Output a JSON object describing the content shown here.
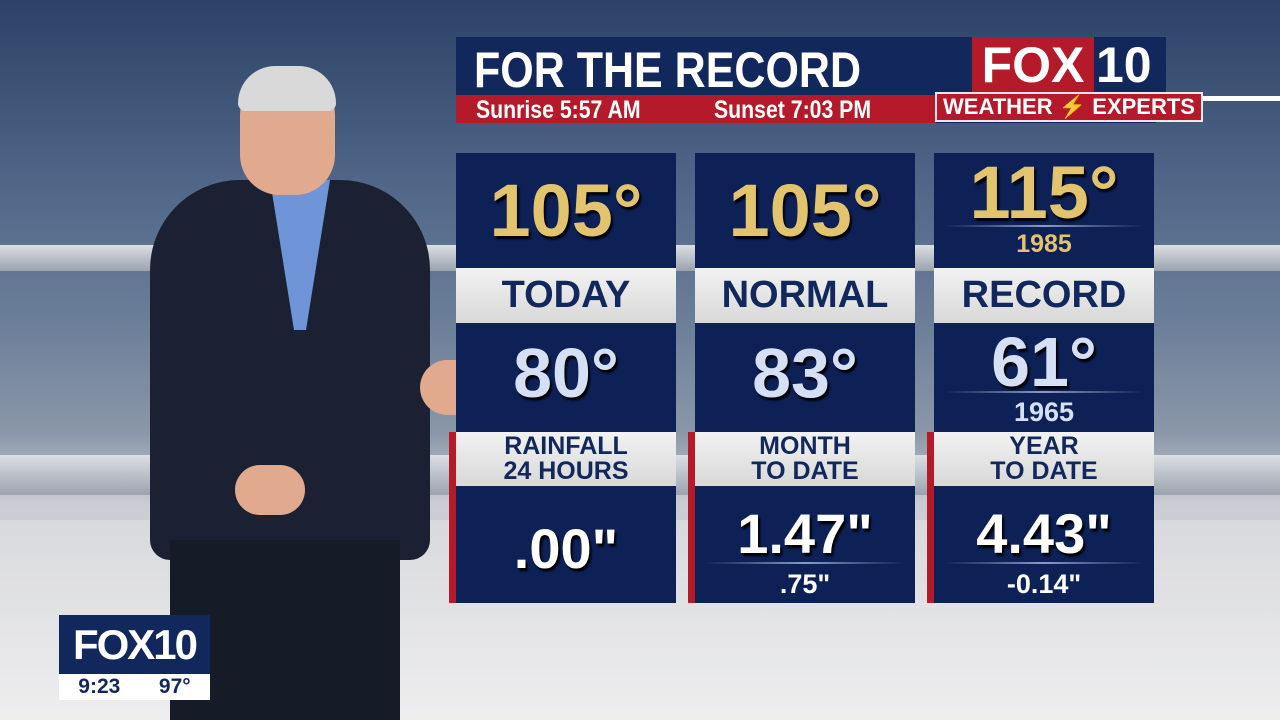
{
  "header": {
    "title": "FOR THE RECORD",
    "sunrise": "Sunrise 5:57 AM",
    "sunset": "Sunset 7:03 PM"
  },
  "logo": {
    "fox": "FOX",
    "num": "10",
    "tagline_left": "WEATHER",
    "tagline_right": "EXPERTS",
    "icon": "lightning-bolt-icon"
  },
  "columns": [
    {
      "high": "105°",
      "label": "TODAY",
      "low": "80°",
      "rain_label_1": "RAINFALL",
      "rain_label_2": "24 HOURS",
      "rain_value": ".00\""
    },
    {
      "high": "105°",
      "label": "NORMAL",
      "low": "83°",
      "rain_label_1": "MONTH",
      "rain_label_2": "TO DATE",
      "rain_value": "1.47\"",
      "rain_sub": ".75\""
    },
    {
      "high": "115°",
      "high_year": "1985",
      "label": "RECORD",
      "low": "61°",
      "low_year": "1965",
      "rain_label_1": "YEAR",
      "rain_label_2": "TO DATE",
      "rain_value": "4.43\"",
      "rain_sub": "-0.14\""
    }
  ],
  "bug": {
    "logo": "FOX10",
    "time": "9:23",
    "temp": "97°"
  },
  "colors": {
    "navy": "#0e2157",
    "red": "#b51a2a",
    "gold": "#e2c36e"
  }
}
